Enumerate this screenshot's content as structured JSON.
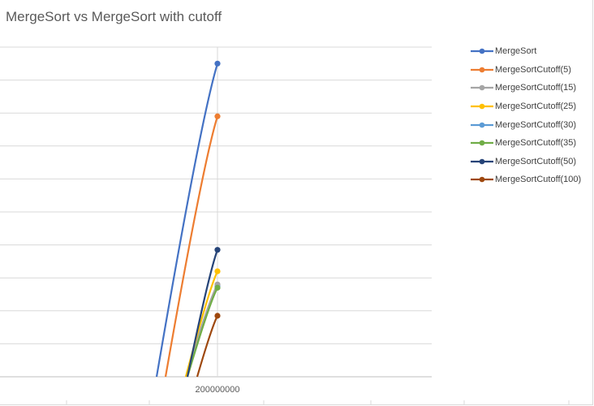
{
  "chart_data": {
    "type": "line",
    "title": "MergeSort vs MergeSort with cutoff",
    "x_tick_labels": [
      "200000000"
    ],
    "grid": true,
    "legend_position": "right",
    "series": [
      {
        "name": "MergeSort",
        "color": "#4472c4",
        "value": 9.5
      },
      {
        "name": "MergeSortCutoff(5)",
        "color": "#ed7d31",
        "value": 7.9
      },
      {
        "name": "MergeSortCutoff(15)",
        "color": "#a5a5a5",
        "value": 2.8
      },
      {
        "name": "MergeSortCutoff(25)",
        "color": "#ffc000",
        "value": 3.2
      },
      {
        "name": "MergeSortCutoff(30)",
        "color": "#5b9bd5",
        "value": 2.75
      },
      {
        "name": "MergeSortCutoff(35)",
        "color": "#70ad47",
        "value": 2.7
      },
      {
        "name": "MergeSortCutoff(50)",
        "color": "#264478",
        "value": 3.85
      },
      {
        "name": "MergeSortCutoff(100)",
        "color": "#9e480e",
        "value": 1.85
      }
    ],
    "ylim": [
      0,
      10
    ]
  }
}
